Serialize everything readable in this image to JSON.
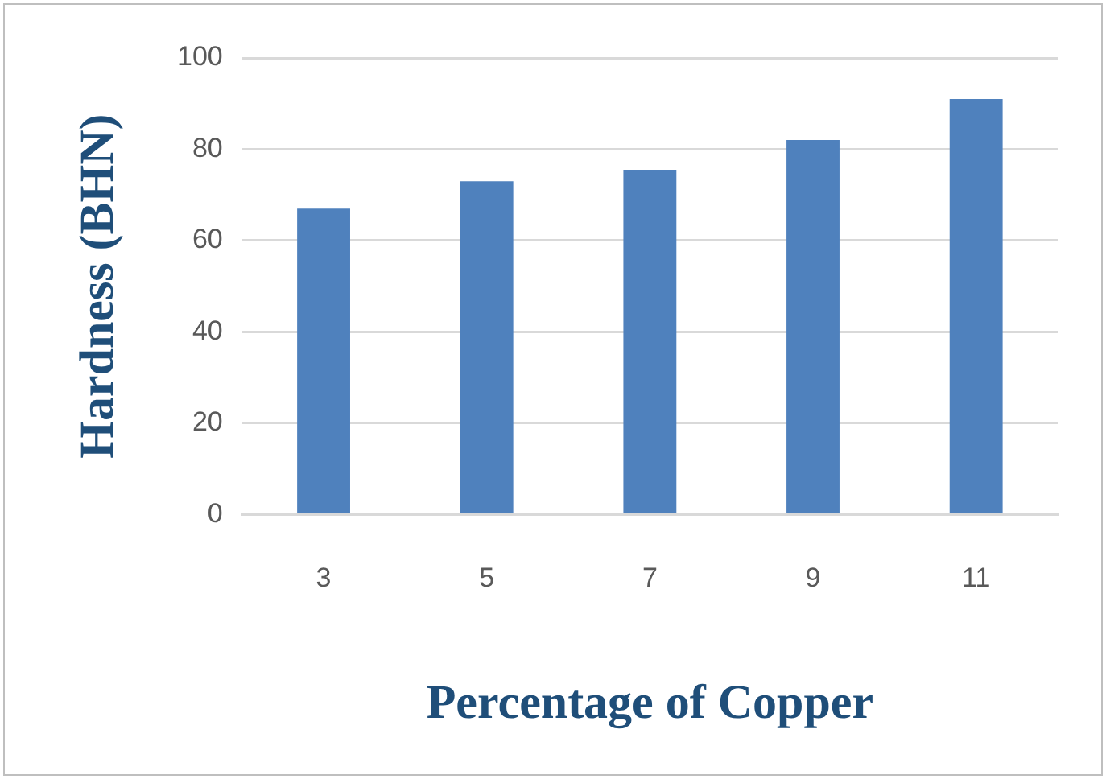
{
  "chart_data": {
    "type": "bar",
    "xlabel": "Percentage of Copper",
    "ylabel": "Hardness (BHN)",
    "categories": [
      "3",
      "5",
      "7",
      "9",
      "11"
    ],
    "values": [
      67,
      73,
      75.5,
      82,
      91
    ],
    "color": "#4f81bd",
    "ylim": [
      0,
      100
    ],
    "yticks": [
      0,
      20,
      40,
      60,
      80,
      100
    ],
    "grid": "y",
    "legend": false
  }
}
